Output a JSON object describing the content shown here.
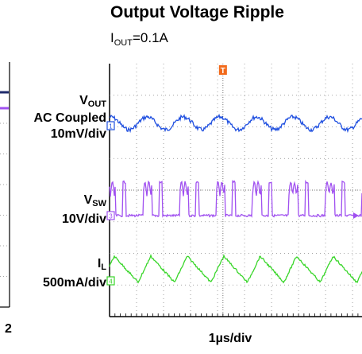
{
  "page": {
    "title": "Output Voltage Ripple",
    "subtitle_main": "I",
    "subtitle_sub": "OUT",
    "subtitle_tail": "=0.1A",
    "left_edge_number": "2"
  },
  "chart_data": {
    "type": "line",
    "title": "Output Voltage Ripple",
    "subtitle": "IOUT=0.1A",
    "xlabel": "1µs/div",
    "time_per_div_us": 1,
    "divisions_x": 10,
    "divisions_y": 8,
    "trigger_marker": "T",
    "colors": {
      "vout": "#1f4fe0",
      "vsw": "#a050f0",
      "il": "#39d62a",
      "trigger": "#f26a1b",
      "grid": "#888888",
      "left_line_top": "#1f2a6b",
      "left_line_purple": "#a050f0"
    },
    "series": [
      {
        "key": "vout",
        "label_main": "V",
        "label_sub": "OUT",
        "label_line2": "AC Coupled",
        "scale": "10mV/div",
        "channel": "1",
        "period_us": 1.35,
        "ripple_peak_mv": 5
      },
      {
        "key": "vsw",
        "label_main": "V",
        "label_sub": "SW",
        "scale": "10V/div",
        "channel": "3",
        "period_us": 1.35,
        "high_v": 14,
        "low_v": 0
      },
      {
        "key": "il",
        "label_main": "I",
        "label_sub": "L",
        "scale": "500mA/div",
        "channel": "4",
        "period_us": 1.35,
        "peak_to_peak_ma": 450
      }
    ]
  }
}
